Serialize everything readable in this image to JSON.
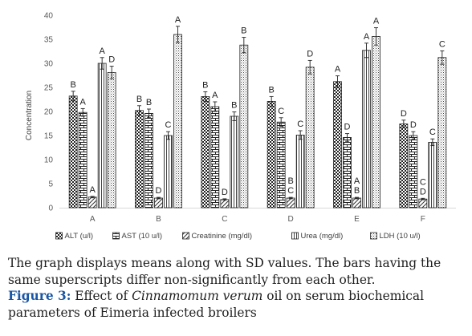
{
  "chart_data": {
    "type": "bar",
    "ylabel": "Concentration",
    "ylim": [
      0,
      40
    ],
    "yticks": [
      0,
      5,
      10,
      15,
      20,
      25,
      30,
      35,
      40
    ],
    "categories": [
      "A",
      "B",
      "C",
      "D",
      "E",
      "F"
    ],
    "grid": false,
    "legend_position": "bottom",
    "series": [
      {
        "name": "ALT (u/l)",
        "pattern": "checker",
        "values": [
          23.2,
          20.2,
          23.1,
          22.1,
          26.2,
          17.4
        ],
        "errors": [
          1.0,
          1.0,
          1.0,
          1.0,
          1.2,
          0.8
        ],
        "letters": [
          "B",
          "B",
          "B",
          "B",
          "A",
          "D"
        ]
      },
      {
        "name": "AST (10 u/l)",
        "pattern": "brick",
        "values": [
          19.8,
          19.6,
          21.0,
          17.8,
          14.6,
          15.0
        ],
        "errors": [
          0.8,
          0.9,
          1.0,
          0.9,
          0.8,
          0.8
        ],
        "letters": [
          "A",
          "B",
          "A",
          "C",
          "D",
          "D"
        ]
      },
      {
        "name": "Creatinine (mg/dl)",
        "pattern": "diagonal",
        "values": [
          2.2,
          2.0,
          1.7,
          2.0,
          2.0,
          1.8
        ],
        "errors": [
          0.15,
          0.15,
          0.15,
          0.15,
          0.15,
          0.15
        ],
        "letters": [
          "A",
          "D",
          "D",
          "B C",
          "A B",
          "C D"
        ]
      },
      {
        "name": "Urea (mg/dl)",
        "pattern": "vertical",
        "values": [
          30.0,
          15.0,
          19.0,
          15.1,
          32.7,
          13.6
        ],
        "errors": [
          1.2,
          0.8,
          0.9,
          0.9,
          1.5,
          0.7
        ],
        "letters": [
          "A",
          "C",
          "B",
          "C",
          "A",
          "C"
        ]
      },
      {
        "name": "LDH (10 u/l)",
        "pattern": "dots",
        "values": [
          28.1,
          36.0,
          33.8,
          29.2,
          35.6,
          31.2
        ],
        "errors": [
          1.3,
          1.7,
          1.6,
          1.4,
          1.8,
          1.4
        ],
        "letters": [
          "D",
          "A",
          "B",
          "D",
          "A",
          "C"
        ]
      }
    ]
  },
  "caption": {
    "note": "The graph displays means along with SD values. The bars having the same superscripts differ non-significantly from each other.",
    "figure_label": "Figure 3:",
    "title_prefix": "Effect of",
    "title_italic": "Cinnamomum verum",
    "title_suffix": "oil on serum biochemical parameters of Eimeria infected broilers"
  }
}
